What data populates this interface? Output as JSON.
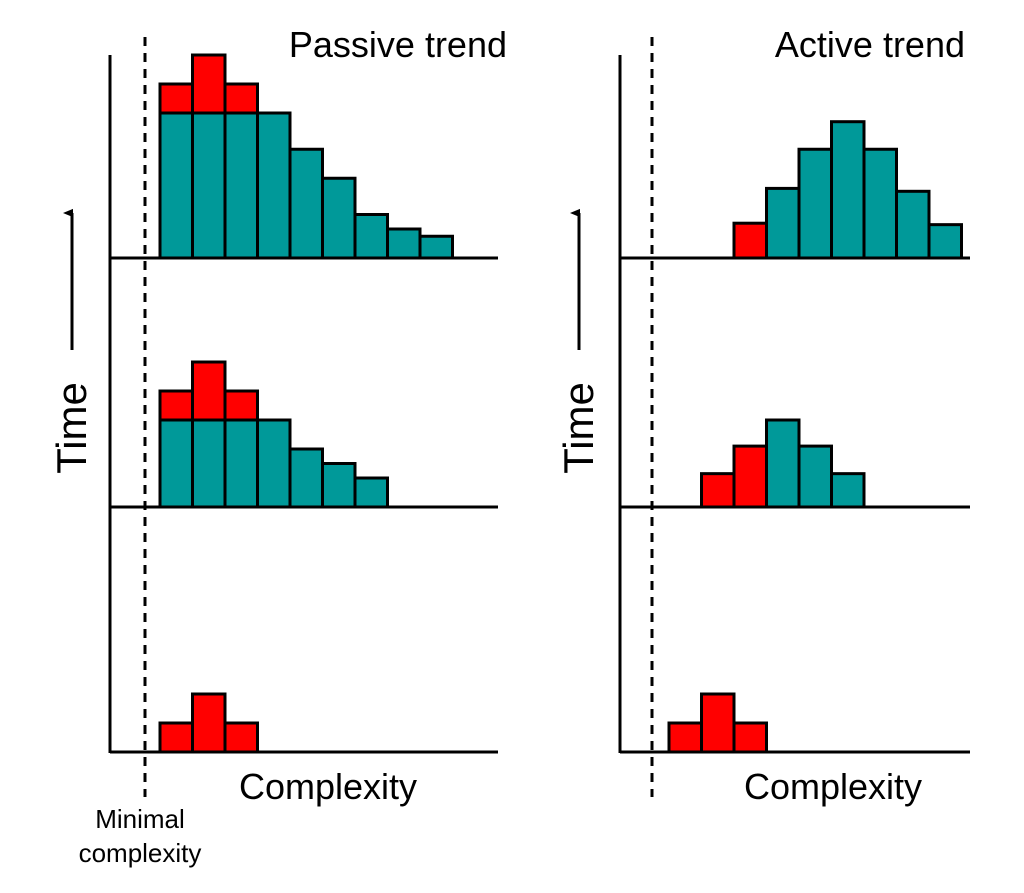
{
  "colors": {
    "teal": "#009999",
    "red": "#ff0000"
  },
  "panels": [
    {
      "title": "Passive trend",
      "y_label": "Time",
      "x_label": "Complexity",
      "rows": [
        {
          "teal": [
            10,
            10,
            10,
            10,
            7.5,
            5.5,
            3,
            2,
            1.5
          ],
          "red": [
            2,
            4,
            2
          ]
        },
        {
          "teal": [
            6,
            6,
            6,
            6,
            4,
            3,
            2
          ],
          "red": [
            2,
            4,
            2
          ]
        },
        {
          "teal": [],
          "red": [
            2,
            4,
            2
          ]
        }
      ]
    },
    {
      "title": "Active trend",
      "y_label": "Time",
      "x_label": "Complexity",
      "rows": [
        {
          "teal": [
            null,
            null,
            null,
            4.8,
            7.5,
            9.4,
            7.5,
            4.6,
            2.3
          ],
          "red": [
            null,
            null,
            2.4
          ]
        },
        {
          "teal": [
            null,
            null,
            null,
            6,
            4.2,
            2.3
          ],
          "red": [
            null,
            2.3,
            4.2
          ]
        },
        {
          "teal": [],
          "red": [
            2,
            4,
            2
          ]
        }
      ]
    }
  ],
  "minimal_label": [
    "Minimal",
    "complexity"
  ]
}
